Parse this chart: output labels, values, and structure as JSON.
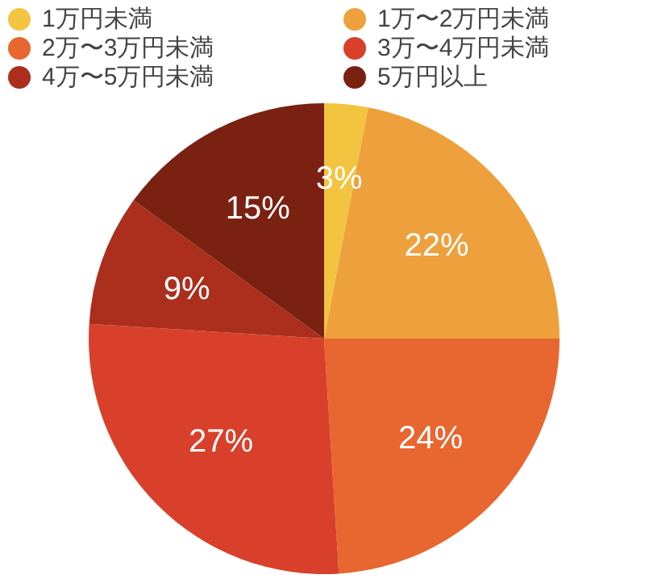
{
  "chart_data": {
    "type": "pie",
    "categories": [
      "1万円未満",
      "1万〜2万円未満",
      "2万〜3万円未満",
      "3万〜4万円未満",
      "4万〜5万円未満",
      "5万円以上"
    ],
    "values": [
      3,
      22,
      24,
      27,
      9,
      15
    ],
    "colors": [
      "#f2c440",
      "#eda03c",
      "#e8662f",
      "#d9402b",
      "#ab2f1c",
      "#7b2112"
    ],
    "value_labels": [
      "3%",
      "22%",
      "24%",
      "27%",
      "9%",
      "15%"
    ],
    "legend": "top"
  }
}
